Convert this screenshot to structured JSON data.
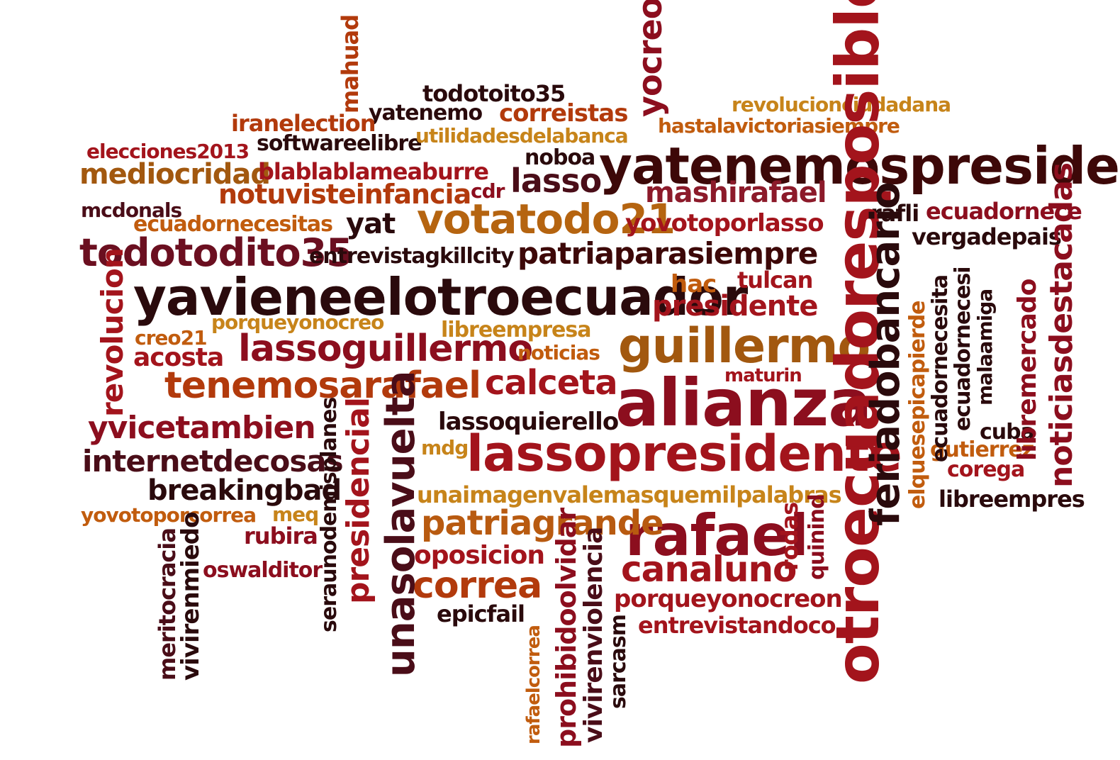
{
  "palette": {
    "darkest": "#2a0a0c",
    "dark_maroon": "#4a0d18",
    "crimson": "#8c0e1e",
    "red": "#a3141c",
    "rust": "#b23a0c",
    "orange": "#c15c0e",
    "amber": "#c7841a"
  },
  "words": [
    "yatenemospresidente",
    "yavieneelotroecuador",
    "alianza",
    "guillermo",
    "lassopresidente",
    "rafael",
    "otroecuadoresposible",
    "tenemosarafael",
    "lassoguillermo",
    "votatodo21",
    "todotodito35",
    "unasolavuelta",
    "feriadobancario",
    "presidente",
    "mashirafael",
    "correa",
    "canaluno",
    "patriagrande",
    "patriaparasiempre",
    "calceta",
    "notuvisteinfancia",
    "lasso",
    "mediocridad",
    "yocreo",
    "correistas",
    "todotoito35",
    "yatenemo",
    "iranelection",
    "softwareelibre",
    "revolucionciudadana",
    "hastalavictoriasiempre",
    "utilidadesdelabanca",
    "elecciones2013",
    "blablablameaburre",
    "noboa",
    "cdr",
    "mcdonals",
    "ecuadornecesitas",
    "yat",
    "yovotoporlasso",
    "rafli",
    "ecuadornece",
    "vergadepais",
    "entrevistagkillcity",
    "hac",
    "tulcan",
    "porqueyonocreo",
    "creo21",
    "libreempresa",
    "acosta",
    "noticias",
    "maturin",
    "lassoquierello",
    "yvicetambien",
    "mdg",
    "internetdecosas",
    "breakingbad",
    "unaimagenvalemasquemilpalabras",
    "yovotoporcorrea",
    "meq",
    "rubira",
    "oposicion",
    "oswalditor",
    "epicfail",
    "porqueyonocreon",
    "entrevistandoco",
    "cuba",
    "gutierrez",
    "corega",
    "libreempres",
    "revolucion",
    "mahuad",
    "presidencial",
    "seraunodemisplanes",
    "meritocracia",
    "vivirenmiedo",
    "prohibidoolvidar",
    "rafaelcorrea",
    "vivirenviolencia",
    "sarcasm",
    "quinind",
    "rodas",
    "elquesepicapierde",
    "ecuadornecesita",
    "ecuadornecesi",
    "malaamiga",
    "libremercado",
    "noticiasdestacadas"
  ]
}
